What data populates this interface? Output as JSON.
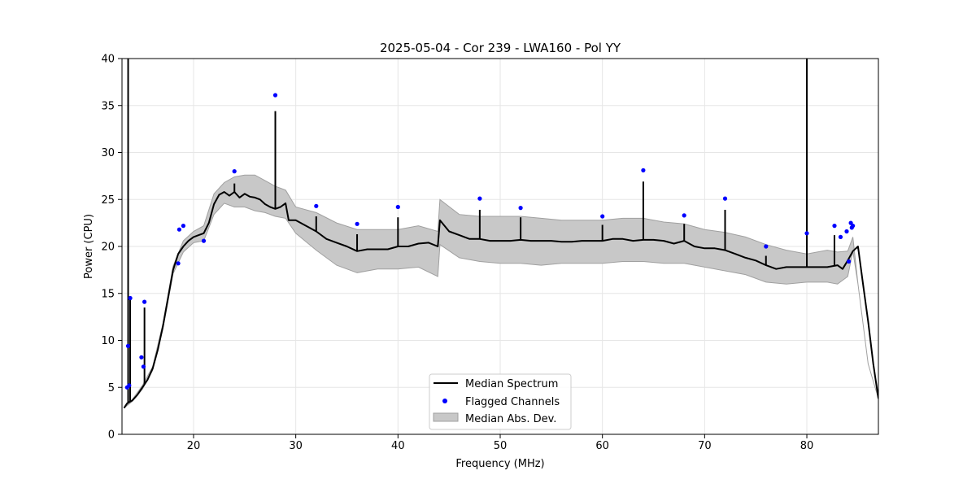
{
  "chart_data": {
    "type": "line",
    "title": "2025-05-04 - Cor 239 - LWA160 - Pol YY",
    "xlabel": "Frequency (MHz)",
    "ylabel": "Power (CPU)",
    "xlim": [
      13,
      87
    ],
    "ylim": [
      0,
      40
    ],
    "xticks": [
      20,
      30,
      40,
      50,
      60,
      70,
      80
    ],
    "yticks": [
      0,
      5,
      10,
      15,
      20,
      25,
      30,
      35,
      40
    ],
    "grid": true,
    "legend_position": "lower-center",
    "legend": [
      "Median Spectrum",
      "Flagged Channels",
      "Median Abs. Dev."
    ],
    "colors": {
      "median": "#000000",
      "flagged": "#0000ff",
      "band_fill": "#c8c8c8",
      "band_edge": "#a0a0a0",
      "grid": "#e6e6e6"
    },
    "series": [
      {
        "name": "Median Spectrum",
        "x": [
          13.2,
          13.5,
          14.0,
          14.5,
          15.0,
          15.5,
          16.0,
          16.5,
          17.0,
          17.5,
          18.0,
          18.5,
          19.0,
          19.5,
          20.0,
          20.5,
          21.0,
          21.5,
          22.0,
          22.5,
          23.0,
          23.5,
          24.0,
          24.5,
          25.0,
          25.5,
          26.0,
          26.5,
          27.0,
          27.5,
          28.0,
          28.5,
          29.0,
          29.3,
          30.0,
          31.0,
          32.0,
          33.0,
          34.0,
          35.0,
          36.0,
          37.0,
          38.0,
          39.0,
          40.0,
          41.0,
          42.0,
          43.0,
          43.9,
          44.1,
          45.0,
          46.0,
          47.0,
          48.0,
          49.0,
          50.0,
          51.0,
          52.0,
          53.0,
          54.0,
          55.0,
          56.0,
          57.0,
          58.0,
          59.0,
          60.0,
          61.0,
          62.0,
          63.0,
          64.0,
          65.0,
          66.0,
          67.0,
          68.0,
          69.0,
          70.0,
          71.0,
          72.0,
          73.0,
          74.0,
          75.0,
          76.0,
          77.0,
          78.0,
          79.0,
          80.0,
          81.0,
          82.0,
          83.0,
          83.5,
          84.0,
          84.5,
          85.0,
          85.5,
          86.0,
          86.5,
          87.0
        ],
        "values": [
          2.8,
          3.3,
          3.6,
          4.2,
          5.0,
          5.8,
          7.0,
          9.0,
          11.5,
          14.5,
          17.5,
          19.2,
          20.0,
          20.6,
          21.0,
          21.2,
          21.4,
          22.5,
          24.5,
          25.5,
          25.8,
          25.4,
          25.8,
          25.2,
          25.6,
          25.3,
          25.2,
          25.0,
          24.5,
          24.2,
          24.0,
          24.2,
          24.6,
          22.8,
          22.8,
          22.2,
          21.6,
          20.8,
          20.4,
          20.0,
          19.5,
          19.7,
          19.7,
          19.7,
          20.0,
          20.0,
          20.3,
          20.4,
          20.0,
          22.8,
          21.6,
          21.2,
          20.8,
          20.8,
          20.6,
          20.6,
          20.6,
          20.7,
          20.6,
          20.6,
          20.6,
          20.5,
          20.5,
          20.6,
          20.6,
          20.6,
          20.8,
          20.8,
          20.6,
          20.7,
          20.7,
          20.6,
          20.3,
          20.6,
          20.0,
          19.8,
          19.8,
          19.6,
          19.2,
          18.8,
          18.5,
          18.0,
          17.6,
          17.8,
          17.8,
          17.8,
          17.8,
          17.8,
          18.0,
          17.6,
          18.5,
          19.5,
          20.0,
          16.0,
          12.0,
          7.5,
          3.8
        ]
      },
      {
        "name": "Median Abs. Dev.",
        "x": [
          13.2,
          14.0,
          15.0,
          16.0,
          17.0,
          18.0,
          19.0,
          20.0,
          21.0,
          22.0,
          23.0,
          24.0,
          25.0,
          26.0,
          27.0,
          28.0,
          29.0,
          30.0,
          32.0,
          34.0,
          36.0,
          38.0,
          40.0,
          42.0,
          43.9,
          44.1,
          46.0,
          48.0,
          50.0,
          52.0,
          54.0,
          56.0,
          58.0,
          60.0,
          62.0,
          64.0,
          66.0,
          68.0,
          70.0,
          72.0,
          74.0,
          76.0,
          78.0,
          80.0,
          82.0,
          83.0,
          84.0,
          84.5,
          85.0,
          86.0,
          87.0
        ],
        "upper": [
          2.8,
          3.7,
          5.2,
          7.2,
          11.8,
          17.9,
          20.6,
          21.6,
          22.2,
          25.6,
          26.8,
          27.4,
          27.6,
          27.6,
          27.0,
          26.4,
          26.0,
          24.2,
          23.6,
          22.5,
          21.8,
          21.8,
          21.8,
          22.2,
          21.6,
          25.0,
          23.4,
          23.2,
          23.2,
          23.2,
          23.0,
          22.8,
          22.8,
          22.8,
          23.0,
          23.0,
          22.6,
          22.4,
          21.8,
          21.5,
          21.0,
          20.2,
          19.6,
          19.2,
          19.6,
          19.4,
          19.5,
          21.0,
          16.0,
          7.5,
          3.8
        ],
        "lower": [
          2.8,
          3.5,
          4.8,
          6.8,
          11.2,
          17.1,
          19.4,
          20.4,
          20.6,
          23.4,
          24.6,
          24.2,
          24.2,
          23.8,
          23.6,
          23.2,
          23.0,
          21.4,
          19.6,
          18.0,
          17.2,
          17.6,
          17.6,
          17.8,
          16.8,
          20.2,
          18.8,
          18.4,
          18.2,
          18.2,
          18.0,
          18.2,
          18.2,
          18.2,
          18.4,
          18.4,
          18.2,
          18.2,
          17.8,
          17.4,
          17.0,
          16.2,
          16.0,
          16.2,
          16.2,
          16.0,
          16.8,
          19.5,
          16.0,
          7.5,
          3.8
        ]
      },
      {
        "name": "Flagged Channels",
        "x": [
          13.5,
          13.6,
          13.8,
          13.7,
          14.9,
          15.1,
          15.2,
          18.5,
          18.6,
          19.0,
          21.0,
          24.0,
          28.0,
          32.0,
          36.0,
          40.0,
          48.0,
          52.0,
          60.0,
          64.0,
          68.0,
          72.0,
          76.0,
          80.0,
          82.7,
          83.3,
          83.9,
          84.1,
          84.3,
          84.4,
          84.5
        ],
        "values": [
          5.0,
          9.4,
          14.5,
          5.2,
          8.2,
          7.2,
          14.1,
          18.2,
          21.8,
          22.2,
          20.6,
          28.0,
          36.1,
          24.3,
          22.4,
          24.2,
          25.1,
          24.1,
          23.2,
          28.1,
          23.3,
          25.1,
          20.0,
          21.4,
          22.2,
          21.0,
          21.6,
          18.4,
          22.5,
          22.0,
          22.2
        ]
      }
    ],
    "spikes": [
      {
        "x": 13.6,
        "top": 40.0
      },
      {
        "x": 13.8,
        "top": 14.5
      },
      {
        "x": 15.2,
        "top": 13.5
      },
      {
        "x": 24.0,
        "top": 26.7
      },
      {
        "x": 28.0,
        "top": 34.4
      },
      {
        "x": 32.0,
        "top": 23.2
      },
      {
        "x": 36.0,
        "top": 21.3
      },
      {
        "x": 40.0,
        "top": 23.1
      },
      {
        "x": 48.0,
        "top": 23.9
      },
      {
        "x": 52.0,
        "top": 23.1
      },
      {
        "x": 60.0,
        "top": 22.3
      },
      {
        "x": 64.0,
        "top": 26.9
      },
      {
        "x": 68.0,
        "top": 22.4
      },
      {
        "x": 72.0,
        "top": 23.9
      },
      {
        "x": 76.0,
        "top": 19.0
      },
      {
        "x": 80.0,
        "top": 40.0
      },
      {
        "x": 82.7,
        "top": 21.2
      }
    ]
  }
}
